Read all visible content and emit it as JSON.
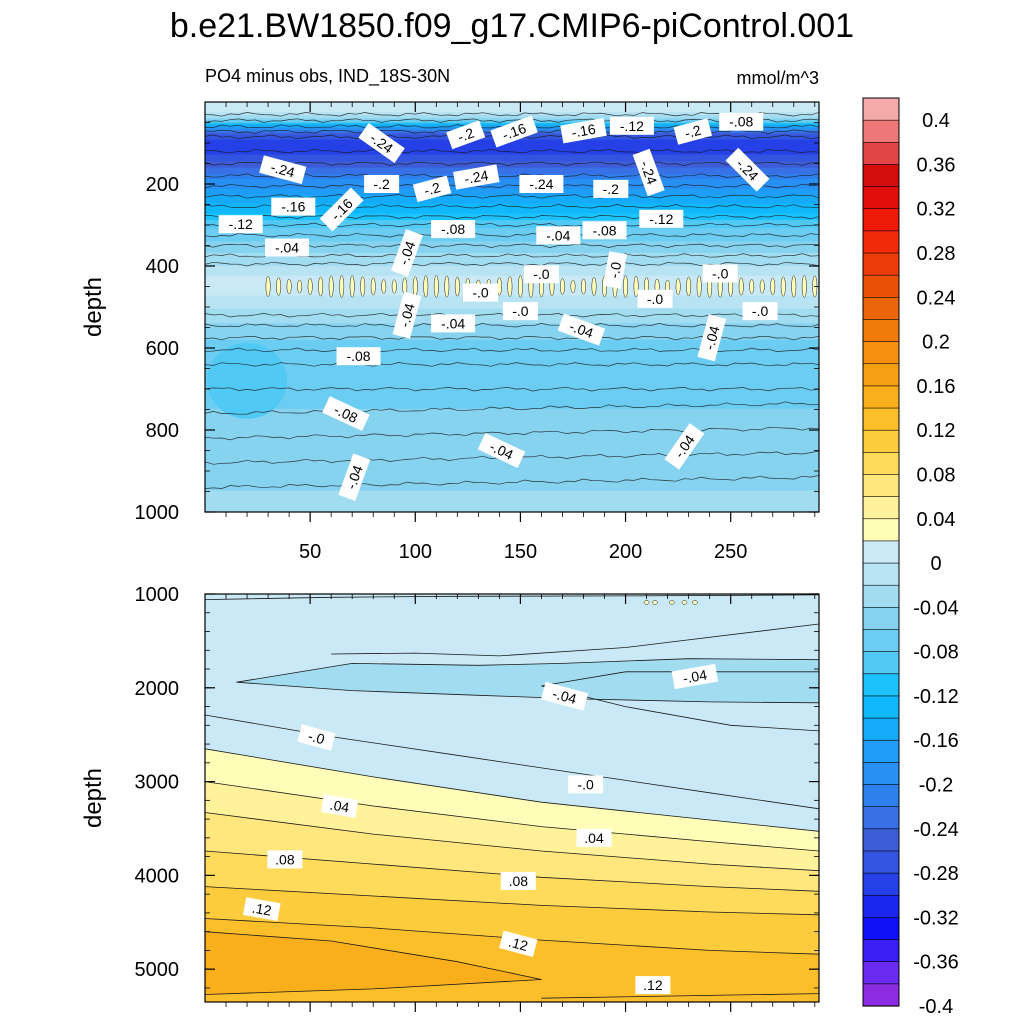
{
  "chart_data": {
    "type": "heatmap",
    "title": "b.e21.BW1850.f09_g17.CMIP6-piControl.001",
    "panels": [
      {
        "name": "upper",
        "left_label": "PO4 minus obs, IND_18S-30N",
        "right_label": "mmol/m^3",
        "ylabel": "depth",
        "xlim": [
          0,
          292
        ],
        "ylim": [
          0,
          1000
        ],
        "y_inverted": true,
        "yticks": [
          200,
          400,
          600,
          800,
          1000
        ],
        "ytick_labels": [
          "200",
          "400",
          "600",
          "800",
          "1000"
        ],
        "xticks": [
          50,
          100,
          150,
          200,
          250
        ],
        "xtick_labels": [
          "50",
          "100",
          "150",
          "200",
          "250"
        ],
        "profile": [
          {
            "depth": 0,
            "value": 0.02
          },
          {
            "depth": 20,
            "value": 0.01
          },
          {
            "depth": 40,
            "value": -0.04
          },
          {
            "depth": 60,
            "value": -0.16
          },
          {
            "depth": 80,
            "value": -0.26
          },
          {
            "depth": 100,
            "value": -0.3
          },
          {
            "depth": 130,
            "value": -0.28
          },
          {
            "depth": 160,
            "value": -0.24
          },
          {
            "depth": 190,
            "value": -0.2
          },
          {
            "depth": 220,
            "value": -0.17
          },
          {
            "depth": 250,
            "value": -0.14
          },
          {
            "depth": 280,
            "value": -0.11
          },
          {
            "depth": 310,
            "value": -0.08
          },
          {
            "depth": 340,
            "value": -0.06
          },
          {
            "depth": 370,
            "value": -0.04
          },
          {
            "depth": 400,
            "value": -0.02
          },
          {
            "depth": 430,
            "value": 0.005
          },
          {
            "depth": 460,
            "value": 0.005
          },
          {
            "depth": 490,
            "value": -0.01
          },
          {
            "depth": 520,
            "value": -0.03
          },
          {
            "depth": 560,
            "value": -0.05
          },
          {
            "depth": 600,
            "value": -0.07
          },
          {
            "depth": 650,
            "value": -0.08
          },
          {
            "depth": 700,
            "value": -0.07
          },
          {
            "depth": 750,
            "value": -0.06
          },
          {
            "depth": 800,
            "value": -0.055
          },
          {
            "depth": 850,
            "value": -0.05
          },
          {
            "depth": 900,
            "value": -0.045
          },
          {
            "depth": 950,
            "value": -0.04
          },
          {
            "depth": 1000,
            "value": -0.035
          }
        ],
        "contour_labels": [
          {
            "x": 84,
            "depth": 100,
            "text": "-.24",
            "angle": 35
          },
          {
            "x": 124,
            "depth": 80,
            "text": "-.2",
            "angle": -20
          },
          {
            "x": 147,
            "depth": 72,
            "text": "-.16",
            "angle": -20
          },
          {
            "x": 180,
            "depth": 70,
            "text": "-.16",
            "angle": -10
          },
          {
            "x": 203,
            "depth": 58,
            "text": "-.12",
            "angle": 0
          },
          {
            "x": 232,
            "depth": 72,
            "text": "-.2",
            "angle": -15
          },
          {
            "x": 255,
            "depth": 48,
            "text": "-.08",
            "angle": 0
          },
          {
            "x": 37,
            "depth": 165,
            "text": "-.24",
            "angle": 15
          },
          {
            "x": 84,
            "depth": 200,
            "text": "-.2",
            "angle": 0
          },
          {
            "x": 108,
            "depth": 212,
            "text": "-.2",
            "angle": -15
          },
          {
            "x": 129,
            "depth": 183,
            "text": "-.24",
            "angle": -10
          },
          {
            "x": 160,
            "depth": 200,
            "text": "-.24",
            "angle": 0
          },
          {
            "x": 193,
            "depth": 212,
            "text": "-.2",
            "angle": 0
          },
          {
            "x": 211,
            "depth": 172,
            "text": "-.24",
            "angle": 70
          },
          {
            "x": 258,
            "depth": 165,
            "text": "-.24",
            "angle": 45
          },
          {
            "x": 42,
            "depth": 255,
            "text": "-.16",
            "angle": 0
          },
          {
            "x": 65,
            "depth": 262,
            "text": "-.16",
            "angle": -45
          },
          {
            "x": 17,
            "depth": 298,
            "text": "-.12",
            "angle": 0
          },
          {
            "x": 39,
            "depth": 355,
            "text": "-.04",
            "angle": 0
          },
          {
            "x": 96,
            "depth": 368,
            "text": "-.04",
            "angle": -70
          },
          {
            "x": 118,
            "depth": 310,
            "text": "-.08",
            "angle": 0
          },
          {
            "x": 168,
            "depth": 325,
            "text": "-.04",
            "angle": 0
          },
          {
            "x": 190,
            "depth": 313,
            "text": "-.08",
            "angle": 0
          },
          {
            "x": 217,
            "depth": 285,
            "text": "-.12",
            "angle": 0
          },
          {
            "x": 160,
            "depth": 420,
            "text": "-.0",
            "angle": 0
          },
          {
            "x": 195,
            "depth": 410,
            "text": "-.0",
            "angle": -80
          },
          {
            "x": 245,
            "depth": 418,
            "text": "-.0",
            "angle": 0
          },
          {
            "x": 131,
            "depth": 465,
            "text": "-.0",
            "angle": 0
          },
          {
            "x": 214,
            "depth": 480,
            "text": "-.0",
            "angle": 0
          },
          {
            "x": 150,
            "depth": 510,
            "text": "-.0",
            "angle": 0
          },
          {
            "x": 264,
            "depth": 510,
            "text": "-.0",
            "angle": 0
          },
          {
            "x": 96,
            "depth": 520,
            "text": "-.04",
            "angle": -75
          },
          {
            "x": 118,
            "depth": 540,
            "text": "-.04",
            "angle": 0
          },
          {
            "x": 179,
            "depth": 555,
            "text": "-.04",
            "angle": 20
          },
          {
            "x": 241,
            "depth": 575,
            "text": "-.04",
            "angle": -75
          },
          {
            "x": 73,
            "depth": 620,
            "text": "-.08",
            "angle": 0
          },
          {
            "x": 67,
            "depth": 760,
            "text": "-.08",
            "angle": 25
          },
          {
            "x": 71,
            "depth": 915,
            "text": "-.04",
            "angle": -70
          },
          {
            "x": 141,
            "depth": 850,
            "text": "-.04",
            "angle": 25
          },
          {
            "x": 228,
            "depth": 840,
            "text": "-.04",
            "angle": -55
          }
        ]
      },
      {
        "name": "lower",
        "ylabel": "depth",
        "xlim": [
          0,
          292
        ],
        "ylim": [
          1000,
          5350
        ],
        "y_inverted": true,
        "yticks": [
          1000,
          2000,
          3000,
          4000,
          5000
        ],
        "ytick_labels": [
          "1000",
          "2000",
          "3000",
          "4000",
          "5000"
        ],
        "contour_lines": [
          {
            "value": -0.03,
            "points": [
              [
                0,
                1060
              ],
              [
                60,
                1035
              ],
              [
                120,
                1025
              ],
              [
                200,
                1020
              ],
              [
                292,
                1010
              ]
            ]
          },
          {
            "value": -0.04,
            "points": [
              [
                60,
                1640
              ],
              [
                100,
                1630
              ],
              [
                140,
                1660
              ],
              [
                200,
                1570
              ],
              [
                292,
                1320
              ]
            ]
          },
          {
            "value": -0.05,
            "points": [
              [
                15,
                1940
              ],
              [
                70,
                1740
              ],
              [
                130,
                1760
              ],
              [
                170,
                1740
              ],
              [
                230,
                1690
              ],
              [
                292,
                1700
              ]
            ]
          },
          {
            "value": -0.05,
            "points": [
              [
                15,
                1940
              ],
              [
                70,
                2030
              ],
              [
                130,
                2080
              ],
              [
                180,
                2120
              ],
              [
                240,
                2150
              ],
              [
                292,
                2160
              ]
            ]
          },
          {
            "value": -0.04,
            "points": [
              [
                160,
                1980
              ],
              [
                200,
                1830
              ],
              [
                292,
                1830
              ]
            ]
          },
          {
            "value": -0.04,
            "points": [
              [
                160,
                1980
              ],
              [
                200,
                2200
              ],
              [
                250,
                2400
              ],
              [
                292,
                2460
              ]
            ]
          },
          {
            "value": -0.0,
            "points": [
              [
                0,
                2290
              ],
              [
                60,
                2520
              ],
              [
                120,
                2720
              ],
              [
                180,
                2920
              ],
              [
                240,
                3120
              ],
              [
                292,
                3290
              ]
            ]
          },
          {
            "value": 0.02,
            "points": [
              [
                0,
                2650
              ],
              [
                80,
                2950
              ],
              [
                160,
                3220
              ],
              [
                240,
                3410
              ],
              [
                292,
                3530
              ]
            ]
          },
          {
            "value": 0.04,
            "points": [
              [
                0,
                3000
              ],
              [
                80,
                3260
              ],
              [
                160,
                3480
              ],
              [
                240,
                3640
              ],
              [
                292,
                3740
              ]
            ]
          },
          {
            "value": 0.06,
            "points": [
              [
                0,
                3330
              ],
              [
                80,
                3560
              ],
              [
                160,
                3740
              ],
              [
                240,
                3880
              ],
              [
                292,
                3950
              ]
            ]
          },
          {
            "value": 0.08,
            "points": [
              [
                0,
                3740
              ],
              [
                80,
                3880
              ],
              [
                160,
                4020
              ],
              [
                240,
                4120
              ],
              [
                292,
                4170
              ]
            ]
          },
          {
            "value": 0.1,
            "points": [
              [
                0,
                4120
              ],
              [
                80,
                4220
              ],
              [
                160,
                4320
              ],
              [
                240,
                4390
              ],
              [
                292,
                4420
              ]
            ]
          },
          {
            "value": 0.12,
            "points": [
              [
                0,
                4460
              ],
              [
                80,
                4560
              ],
              [
                160,
                4690
              ],
              [
                240,
                4800
              ],
              [
                292,
                4840
              ]
            ]
          },
          {
            "value": 0.14,
            "points": [
              [
                0,
                4600
              ],
              [
                60,
                4700
              ],
              [
                120,
                4920
              ],
              [
                160,
                5110
              ]
            ]
          },
          {
            "value": 0.14,
            "points": [
              [
                0,
                5270
              ],
              [
                80,
                5210
              ],
              [
                160,
                5110
              ]
            ]
          },
          {
            "value": 0.14,
            "points": [
              [
                160,
                5310
              ],
              [
                292,
                5260
              ]
            ]
          }
        ],
        "contour_labels": [
          {
            "x": 219,
            "depth": 1090,
            "text": "",
            "angle": 0
          },
          {
            "x": 233,
            "depth": 1880,
            "text": "-.04",
            "angle": -10
          },
          {
            "x": 171,
            "depth": 2090,
            "text": "-.04",
            "angle": 15
          },
          {
            "x": 53,
            "depth": 2530,
            "text": "-.0",
            "angle": 15
          },
          {
            "x": 181,
            "depth": 3030,
            "text": "-.0",
            "angle": 0
          },
          {
            "x": 64,
            "depth": 3260,
            "text": ".04",
            "angle": 10
          },
          {
            "x": 185,
            "depth": 3600,
            "text": ".04",
            "angle": 0
          },
          {
            "x": 38,
            "depth": 3830,
            "text": ".08",
            "angle": 0
          },
          {
            "x": 149,
            "depth": 4060,
            "text": ".08",
            "angle": 0
          },
          {
            "x": 27,
            "depth": 4360,
            "text": ".12",
            "angle": 10
          },
          {
            "x": 149,
            "depth": 4730,
            "text": ".12",
            "angle": 15
          },
          {
            "x": 213,
            "depth": 5170,
            "text": ".12",
            "angle": 0
          }
        ],
        "xticks": [
          50,
          100,
          150,
          200,
          250
        ]
      }
    ],
    "colorbar": {
      "levels": [
        -0.4,
        -0.38,
        -0.36,
        -0.34,
        -0.32,
        -0.3,
        -0.28,
        -0.26,
        -0.24,
        -0.22,
        -0.2,
        -0.18,
        -0.16,
        -0.14,
        -0.12,
        -0.1,
        -0.08,
        -0.06,
        -0.04,
        -0.02,
        0,
        0.02,
        0.04,
        0.06,
        0.08,
        0.1,
        0.12,
        0.14,
        0.16,
        0.18,
        0.2,
        0.22,
        0.24,
        0.26,
        0.28,
        0.3,
        0.32,
        0.34,
        0.36,
        0.38,
        0.4
      ],
      "colors": [
        "#8c2be2",
        "#6a2af0",
        "#3b1ef5",
        "#1010f8",
        "#1a26ee",
        "#2440e6",
        "#3354e0",
        "#3c5cd8",
        "#3870e8",
        "#2e80ee",
        "#2890f3",
        "#1f9df7",
        "#16aafa",
        "#10b8fb",
        "#1cc2fb",
        "#50c9f5",
        "#6ccdf2",
        "#86d3f0",
        "#a2dcf1",
        "#b8e3f3",
        "#cae9f6",
        "#fffdb8",
        "#fff29a",
        "#ffe77e",
        "#ffdb5c",
        "#fdcc3c",
        "#fcbf2a",
        "#f9ae1c",
        "#f7a014",
        "#f4900e",
        "#f07a0a",
        "#ec6508",
        "#ea5006",
        "#ee3c08",
        "#f22a08",
        "#ee1a08",
        "#e20e0a",
        "#d30c0c",
        "#e24545",
        "#ee7878",
        "#f5aaaa"
      ],
      "tick_labels": [
        "0.4",
        "0.36",
        "0.32",
        "0.28",
        "0.24",
        "0.2",
        "0.16",
        "0.12",
        "0.08",
        "0.04",
        "0",
        "-0.04",
        "-0.08",
        "-0.12",
        "-0.16",
        "-0.2",
        "-0.24",
        "-0.28",
        "-0.32",
        "-0.36",
        "-0.4"
      ],
      "tick_values": [
        0.4,
        0.36,
        0.32,
        0.28,
        0.24,
        0.2,
        0.16,
        0.12,
        0.08,
        0.04,
        0,
        -0.04,
        -0.08,
        -0.12,
        -0.16,
        -0.2,
        -0.24,
        -0.28,
        -0.32,
        -0.36,
        -0.4
      ]
    }
  }
}
